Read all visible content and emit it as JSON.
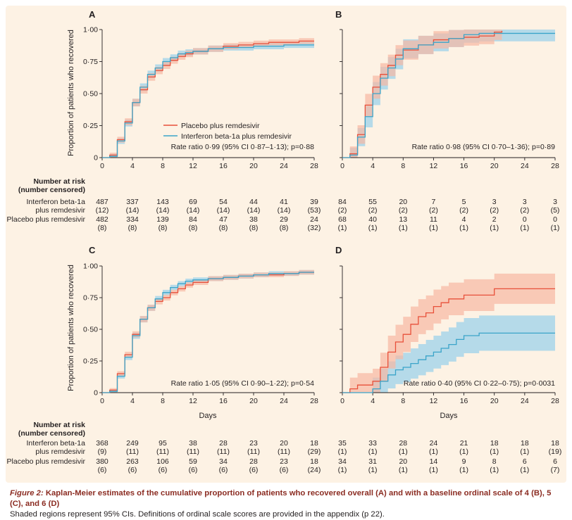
{
  "figure": {
    "caption_label": "Figure 2:",
    "caption_title": " Kaplan-Meier estimates of the cumulative proportion of patients who recovered overall (A) and with a baseline ordinal scale of 4 (B), 5 (C), and 6 (D)",
    "caption_note": "Shaded regions represent 95% CIs. Definitions of ordinal scale scores are provided in the appendix (p 22).",
    "ylabel": "Proportion of patients who recovered",
    "xlabel": "Days",
    "risk_header_1": "Number at risk",
    "risk_header_2": "(number censored)",
    "row_ifn_1": "Interferon beta-1a",
    "row_ifn_2": "plus remdesivir",
    "row_pbo": "Placebo plus remdesivir",
    "legend_placebo": "Placebo plus remdesivir",
    "legend_ifn": "Interferon beta-1a plus remdesivir",
    "colors": {
      "placebo": "#e8503a",
      "placebo_ci": "#f7b8a2",
      "ifn": "#3aa4c9",
      "ifn_ci": "#a8d6ea",
      "overlap_ci": "#c9cfc6"
    }
  },
  "chart_data": [
    {
      "type": "line",
      "panel": "A",
      "xticks": [
        "0",
        "4",
        "8",
        "12",
        "16",
        "20",
        "24",
        "28"
      ],
      "yticks": [
        "0",
        "0·25",
        "0·50",
        "0·75",
        "1·00"
      ],
      "xlim": [
        0,
        28
      ],
      "ylim": [
        0,
        1
      ],
      "annotation": "Rate ratio 0·99 (95% CI 0·87–1·13); p=0·88",
      "series": [
        {
          "name": "Placebo plus remdesivir",
          "x": [
            0,
            1,
            2,
            3,
            4,
            5,
            6,
            7,
            8,
            9,
            10,
            11,
            12,
            14,
            16,
            18,
            20,
            22,
            24,
            26,
            28
          ],
          "y": [
            0,
            0.02,
            0.14,
            0.28,
            0.43,
            0.53,
            0.63,
            0.68,
            0.72,
            0.76,
            0.79,
            0.81,
            0.83,
            0.85,
            0.87,
            0.88,
            0.89,
            0.9,
            0.9,
            0.91,
            0.91
          ]
        },
        {
          "name": "Interferon beta-1a plus remdesivir",
          "x": [
            0,
            1,
            2,
            3,
            4,
            5,
            6,
            7,
            8,
            9,
            10,
            11,
            12,
            14,
            16,
            18,
            20,
            22,
            24,
            26,
            28
          ],
          "y": [
            0,
            0.01,
            0.13,
            0.27,
            0.43,
            0.55,
            0.65,
            0.7,
            0.75,
            0.78,
            0.81,
            0.82,
            0.83,
            0.85,
            0.86,
            0.86,
            0.87,
            0.87,
            0.88,
            0.88,
            0.88
          ]
        }
      ],
      "risk": {
        "ifn": [
          "487",
          "337",
          "143",
          "69",
          "54",
          "44",
          "41",
          "39"
        ],
        "ifn_c": [
          "(12)",
          "(14)",
          "(14)",
          "(14)",
          "(14)",
          "(14)",
          "(14)",
          "(53)"
        ],
        "pbo": [
          "482",
          "334",
          "139",
          "84",
          "47",
          "38",
          "29",
          "24"
        ],
        "pbo_c": [
          "(8)",
          "(8)",
          "(8)",
          "(8)",
          "(8)",
          "(8)",
          "(8)",
          "(32)"
        ]
      }
    },
    {
      "type": "line",
      "panel": "B",
      "xticks": [
        "0",
        "4",
        "8",
        "12",
        "16",
        "20",
        "24",
        "28"
      ],
      "xlim": [
        0,
        28
      ],
      "ylim": [
        0,
        1
      ],
      "annotation": "Rate ratio 0·98 (95% CI 0·70–1·36); p=0·89",
      "series": [
        {
          "name": "Placebo plus remdesivir",
          "x": [
            0,
            1,
            2,
            3,
            4,
            5,
            6,
            7,
            8,
            10,
            12,
            14,
            16,
            18,
            20,
            21
          ],
          "y": [
            0,
            0.03,
            0.18,
            0.41,
            0.55,
            0.65,
            0.72,
            0.8,
            0.84,
            0.88,
            0.92,
            0.93,
            0.94,
            0.95,
            0.98,
            0.99
          ]
        },
        {
          "name": "Interferon beta-1a plus remdesivir",
          "x": [
            0,
            1,
            2,
            3,
            4,
            5,
            6,
            7,
            8,
            10,
            12,
            14,
            16,
            18,
            20,
            22,
            28
          ],
          "y": [
            0,
            0.02,
            0.16,
            0.32,
            0.5,
            0.62,
            0.7,
            0.77,
            0.85,
            0.88,
            0.9,
            0.93,
            0.96,
            0.97,
            0.97,
            0.97,
            0.97
          ]
        }
      ],
      "risk": {
        "ifn": [
          "84",
          "55",
          "20",
          "7",
          "5",
          "3",
          "3",
          "3"
        ],
        "ifn_c": [
          "(2)",
          "(2)",
          "(2)",
          "(2)",
          "(2)",
          "(2)",
          "(2)",
          "(5)"
        ],
        "pbo": [
          "68",
          "40",
          "13",
          "11",
          "4",
          "2",
          "0",
          "0"
        ],
        "pbo_c": [
          "(1)",
          "(1)",
          "(1)",
          "(1)",
          "(1)",
          "(1)",
          "(1)",
          "(1)"
        ]
      }
    },
    {
      "type": "line",
      "panel": "C",
      "xticks": [
        "0",
        "4",
        "8",
        "12",
        "16",
        "20",
        "24",
        "28"
      ],
      "yticks": [
        "0",
        "0·25",
        "0·50",
        "0·75",
        "1·00"
      ],
      "xlim": [
        0,
        28
      ],
      "ylim": [
        0,
        1
      ],
      "annotation": "Rate ratio 1·05 (95% CI 0·90–1·22); p=0·54",
      "series": [
        {
          "name": "Placebo plus remdesivir",
          "x": [
            0,
            1,
            2,
            3,
            4,
            5,
            6,
            7,
            8,
            9,
            10,
            11,
            12,
            14,
            16,
            18,
            20,
            22,
            24,
            26,
            28
          ],
          "y": [
            0,
            0.02,
            0.15,
            0.3,
            0.46,
            0.58,
            0.67,
            0.72,
            0.75,
            0.79,
            0.82,
            0.85,
            0.87,
            0.9,
            0.91,
            0.92,
            0.93,
            0.93,
            0.94,
            0.95,
            0.95
          ]
        },
        {
          "name": "Interferon beta-1a plus remdesivir",
          "x": [
            0,
            1,
            2,
            3,
            4,
            5,
            6,
            7,
            8,
            9,
            10,
            11,
            12,
            14,
            16,
            18,
            20,
            22,
            24,
            26,
            28
          ],
          "y": [
            0,
            0.01,
            0.13,
            0.28,
            0.45,
            0.58,
            0.67,
            0.74,
            0.79,
            0.83,
            0.86,
            0.88,
            0.89,
            0.9,
            0.91,
            0.92,
            0.93,
            0.94,
            0.94,
            0.95,
            0.95
          ]
        }
      ],
      "risk": {
        "ifn": [
          "368",
          "249",
          "95",
          "38",
          "28",
          "23",
          "20",
          "18"
        ],
        "ifn_c": [
          "(9)",
          "(11)",
          "(11)",
          "(11)",
          "(11)",
          "(11)",
          "(11)",
          "(29)"
        ],
        "pbo": [
          "380",
          "263",
          "106",
          "59",
          "34",
          "28",
          "23",
          "18"
        ],
        "pbo_c": [
          "(6)",
          "(6)",
          "(6)",
          "(6)",
          "(6)",
          "(6)",
          "(6)",
          "(24)"
        ]
      }
    },
    {
      "type": "line",
      "panel": "D",
      "xticks": [
        "0",
        "4",
        "8",
        "12",
        "16",
        "20",
        "24",
        "28"
      ],
      "xlim": [
        0,
        28
      ],
      "ylim": [
        0,
        1
      ],
      "annotation": "Rate ratio 0·40 (95% CI 0·22–0·75); p=0·0031",
      "series": [
        {
          "name": "Placebo plus remdesivir",
          "x": [
            0,
            1,
            2,
            3,
            4,
            5,
            6,
            7,
            8,
            9,
            10,
            11,
            12,
            13,
            14,
            16,
            20,
            28
          ],
          "y": [
            0,
            0.03,
            0.06,
            0.06,
            0.09,
            0.2,
            0.32,
            0.4,
            0.46,
            0.54,
            0.6,
            0.63,
            0.68,
            0.71,
            0.74,
            0.77,
            0.82,
            0.82
          ]
        },
        {
          "name": "Interferon beta-1a plus remdesivir",
          "x": [
            0,
            4,
            5,
            6,
            7,
            8,
            9,
            10,
            11,
            12,
            13,
            14,
            15,
            16,
            18,
            28
          ],
          "y": [
            0,
            0.03,
            0.09,
            0.14,
            0.18,
            0.2,
            0.23,
            0.26,
            0.29,
            0.32,
            0.35,
            0.38,
            0.42,
            0.45,
            0.47,
            0.47
          ]
        }
      ],
      "risk": {
        "ifn": [
          "35",
          "33",
          "28",
          "24",
          "21",
          "18",
          "18",
          "18"
        ],
        "ifn_c": [
          "(1)",
          "(1)",
          "(1)",
          "(1)",
          "(1)",
          "(1)",
          "(1)",
          "(19)"
        ],
        "pbo": [
          "34",
          "31",
          "20",
          "14",
          "9",
          "8",
          "6",
          "6"
        ],
        "pbo_c": [
          "(1)",
          "(1)",
          "(1)",
          "(1)",
          "(1)",
          "(1)",
          "(1)",
          "(7)"
        ]
      }
    }
  ]
}
